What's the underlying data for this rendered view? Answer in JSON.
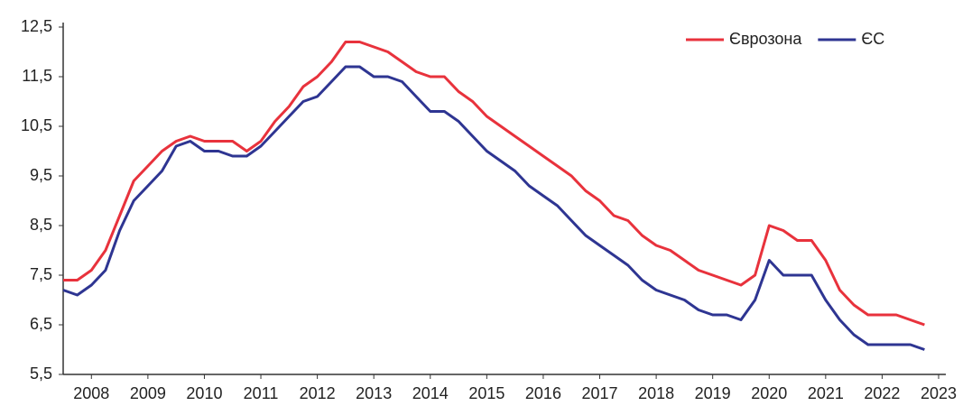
{
  "chart_data": {
    "type": "line",
    "x": [
      2008,
      2008.25,
      2008.5,
      2008.75,
      2009,
      2009.25,
      2009.5,
      2009.75,
      2010,
      2010.25,
      2010.5,
      2010.75,
      2011,
      2011.25,
      2011.5,
      2011.75,
      2012,
      2012.25,
      2012.5,
      2012.75,
      2013,
      2013.25,
      2013.5,
      2013.75,
      2014,
      2014.25,
      2014.5,
      2014.75,
      2015,
      2015.25,
      2015.5,
      2015.75,
      2016,
      2016.25,
      2016.5,
      2016.75,
      2017,
      2017.25,
      2017.5,
      2017.75,
      2018,
      2018.25,
      2018.5,
      2018.75,
      2019,
      2019.25,
      2019.5,
      2019.75,
      2020,
      2020.25,
      2020.5,
      2020.75,
      2021,
      2021.25,
      2021.5,
      2021.75,
      2022,
      2022.25,
      2022.5,
      2022.75,
      2023,
      2023.25
    ],
    "series": [
      {
        "name": "Єврозона",
        "color": "#e8323c",
        "values": [
          7.4,
          7.4,
          7.6,
          8.0,
          8.7,
          9.4,
          9.7,
          10.0,
          10.2,
          10.3,
          10.2,
          10.2,
          10.2,
          10.0,
          10.2,
          10.6,
          10.9,
          11.3,
          11.5,
          11.8,
          12.2,
          12.2,
          12.1,
          12.0,
          11.8,
          11.6,
          11.5,
          11.5,
          11.2,
          11.0,
          10.7,
          10.5,
          10.3,
          10.1,
          9.9,
          9.7,
          9.5,
          9.2,
          9.0,
          8.7,
          8.6,
          8.3,
          8.1,
          8.0,
          7.8,
          7.6,
          7.5,
          7.4,
          7.3,
          7.5,
          8.5,
          8.4,
          8.2,
          8.2,
          7.8,
          7.2,
          6.9,
          6.7,
          6.7,
          6.7,
          6.6,
          6.5
        ]
      },
      {
        "name": "ЄС",
        "color": "#2e3592",
        "values": [
          7.2,
          7.1,
          7.3,
          7.6,
          8.4,
          9.0,
          9.3,
          9.6,
          10.1,
          10.2,
          10.0,
          10.0,
          9.9,
          9.9,
          10.1,
          10.4,
          10.7,
          11.0,
          11.1,
          11.4,
          11.7,
          11.7,
          11.5,
          11.5,
          11.4,
          11.1,
          10.8,
          10.8,
          10.6,
          10.3,
          10.0,
          9.8,
          9.6,
          9.3,
          9.1,
          8.9,
          8.6,
          8.3,
          8.1,
          7.9,
          7.7,
          7.4,
          7.2,
          7.1,
          7.0,
          6.8,
          6.7,
          6.7,
          6.6,
          7.0,
          7.8,
          7.5,
          7.5,
          7.5,
          7.0,
          6.6,
          6.3,
          6.1,
          6.1,
          6.1,
          6.1,
          6.0
        ]
      }
    ],
    "xlim": [
      2008,
      2023.5
    ],
    "xticks": [
      {
        "value": 2008.5,
        "label": "2008"
      },
      {
        "value": 2009.5,
        "label": "2009"
      },
      {
        "value": 2010.5,
        "label": "2010"
      },
      {
        "value": 2011.5,
        "label": "2011"
      },
      {
        "value": 2012.5,
        "label": "2012"
      },
      {
        "value": 2013.5,
        "label": "2013"
      },
      {
        "value": 2014.5,
        "label": "2014"
      },
      {
        "value": 2015.5,
        "label": "2015"
      },
      {
        "value": 2016.5,
        "label": "2016"
      },
      {
        "value": 2017.5,
        "label": "2017"
      },
      {
        "value": 2018.5,
        "label": "2018"
      },
      {
        "value": 2019.5,
        "label": "2019"
      },
      {
        "value": 2020.5,
        "label": "2020"
      },
      {
        "value": 2021.5,
        "label": "2021"
      },
      {
        "value": 2022.5,
        "label": "2022"
      },
      {
        "value": 2023.5,
        "label": "2023"
      }
    ],
    "ylim": [
      5.5,
      12.5
    ],
    "yticks": [
      {
        "value": 5.5,
        "label": "5,5"
      },
      {
        "value": 6.5,
        "label": "6,5"
      },
      {
        "value": 7.5,
        "label": "7,5"
      },
      {
        "value": 8.5,
        "label": "8,5"
      },
      {
        "value": 9.5,
        "label": "9,5"
      },
      {
        "value": 10.5,
        "label": "10,5"
      },
      {
        "value": 11.5,
        "label": "11,5"
      },
      {
        "value": 12.5,
        "label": "12,5"
      }
    ],
    "legend": "upper right"
  }
}
